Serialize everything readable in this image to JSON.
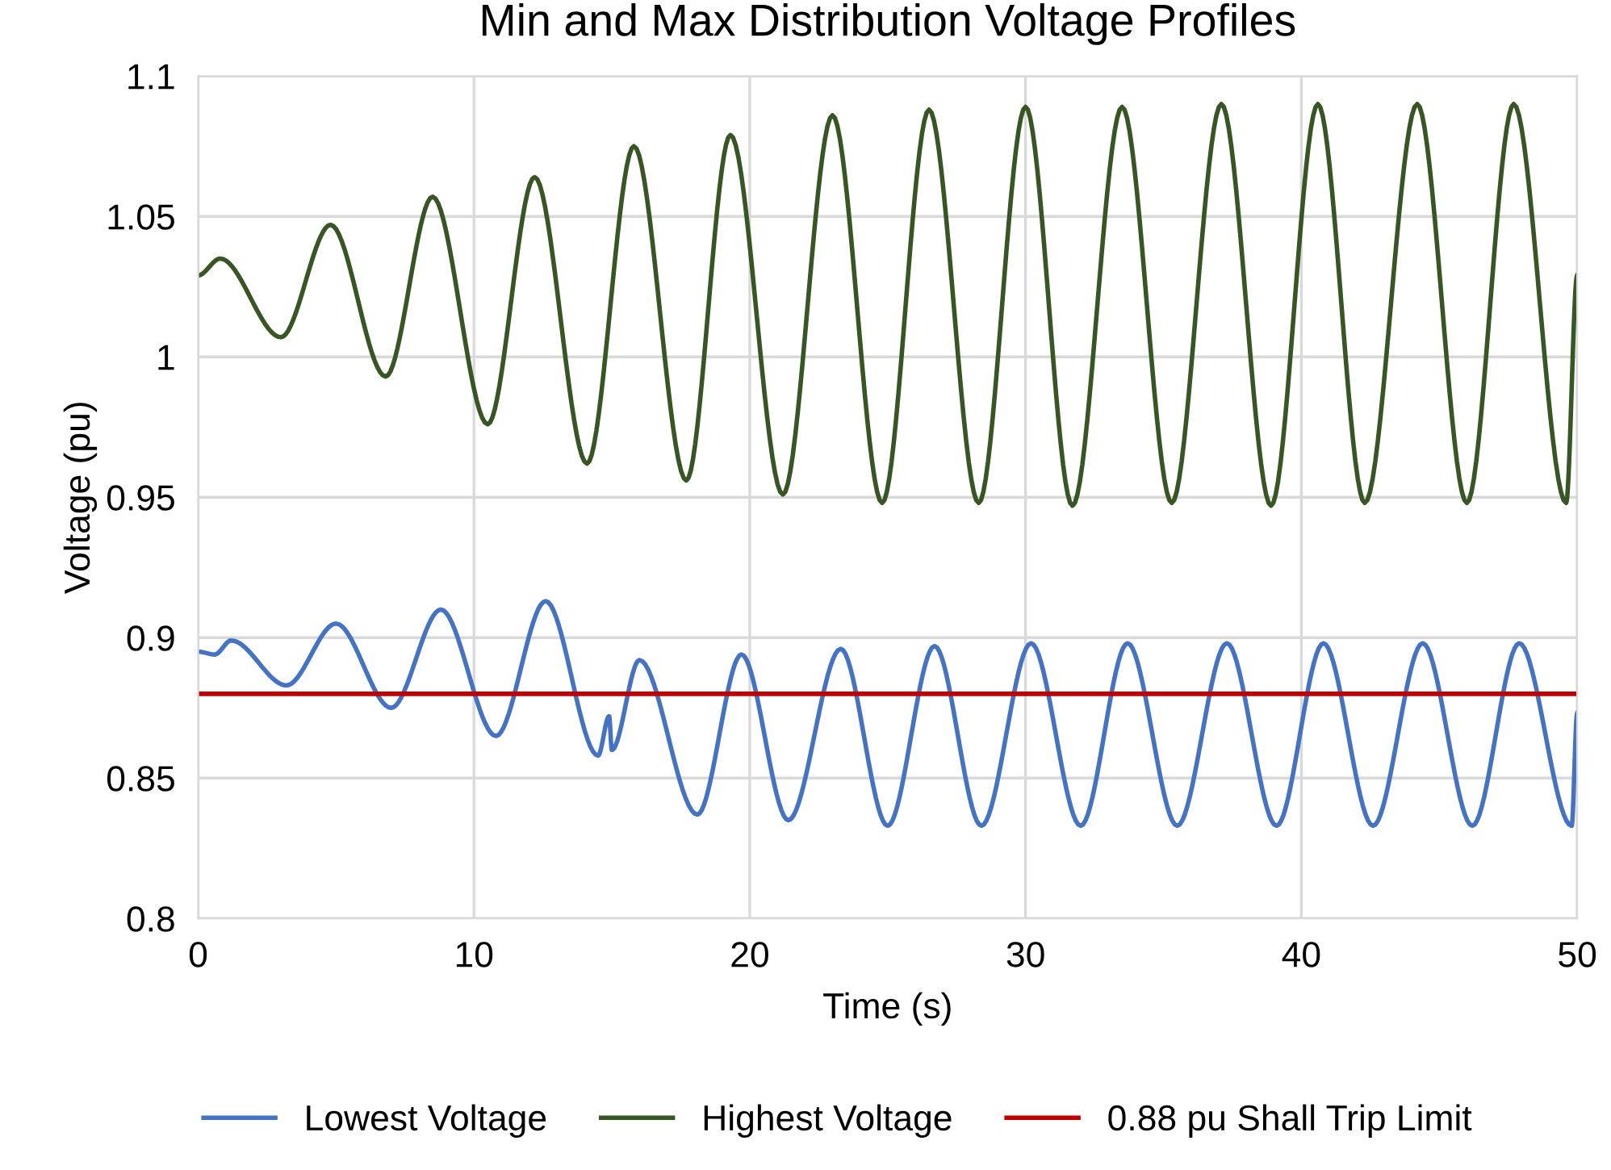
{
  "chart_data": {
    "type": "line",
    "title": "Min and Max Distribution Voltage Profiles",
    "xlabel": "Time (s)",
    "ylabel": "Voltage (pu)",
    "xlim": [
      0,
      50
    ],
    "xticks": [
      0,
      10,
      20,
      30,
      40,
      50
    ],
    "ylim": [
      0.8,
      1.1
    ],
    "yticks": [
      0.8,
      0.85,
      0.9,
      0.95,
      1,
      1.05,
      1.1
    ],
    "grid": true,
    "legend": "bottom",
    "marker": "none",
    "line_style": "solid",
    "series": [
      {
        "name": "Lowest Voltage",
        "color": "#4472c4",
        "x": [
          0,
          0.6,
          1.2,
          3.2,
          5,
          7,
          8.8,
          10.8,
          12.6,
          14.5,
          14.9,
          15.0,
          16,
          18.1,
          19.7,
          21.4,
          23.3,
          25,
          26.7,
          28.4,
          30.2,
          32,
          33.7,
          35.5,
          37.3,
          39.1,
          40.8,
          42.6,
          44.4,
          46.2,
          47.9,
          49.8,
          50
        ],
        "values": [
          0.895,
          0.894,
          0.899,
          0.883,
          0.905,
          0.875,
          0.91,
          0.865,
          0.913,
          0.858,
          0.872,
          0.86,
          0.892,
          0.837,
          0.894,
          0.835,
          0.896,
          0.833,
          0.897,
          0.833,
          0.898,
          0.833,
          0.898,
          0.833,
          0.898,
          0.833,
          0.898,
          0.833,
          0.898,
          0.833,
          0.898,
          0.833,
          0.873
        ]
      },
      {
        "name": "Highest Voltage",
        "color": "#375623",
        "x": [
          0,
          0.8,
          3,
          4.8,
          6.8,
          8.5,
          10.5,
          12.2,
          14.1,
          15.8,
          17.7,
          19.3,
          21.2,
          23,
          24.8,
          26.5,
          28.3,
          30,
          31.7,
          33.5,
          35.3,
          37.1,
          38.9,
          40.6,
          42.3,
          44.2,
          46,
          47.7,
          49.6,
          50
        ],
        "values": [
          1.029,
          1.035,
          1.007,
          1.047,
          0.993,
          1.057,
          0.976,
          1.064,
          0.962,
          1.075,
          0.956,
          1.079,
          0.951,
          1.086,
          0.948,
          1.088,
          0.948,
          1.089,
          0.947,
          1.089,
          0.948,
          1.09,
          0.947,
          1.09,
          0.948,
          1.09,
          0.948,
          1.09,
          0.948,
          1.029
        ]
      }
    ],
    "ref_lines": [
      {
        "axis": "y",
        "value": 0.88,
        "label": "0.88 pu Shall Trip Limit",
        "color": "#c00000",
        "line_style": "solid"
      }
    ]
  }
}
